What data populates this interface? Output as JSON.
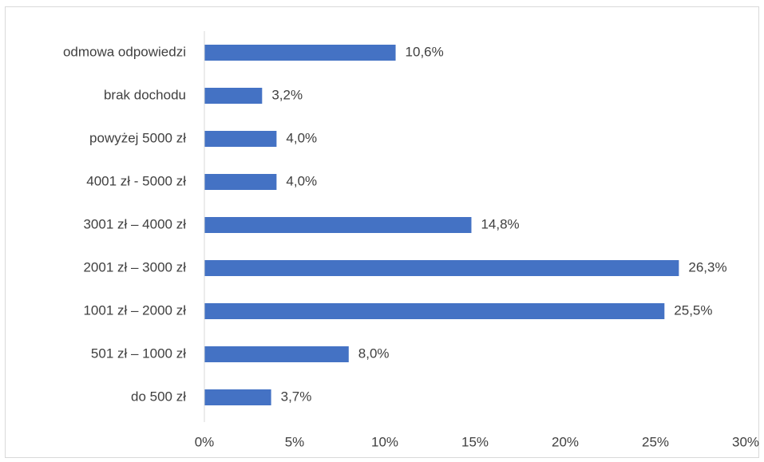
{
  "chart_data": {
    "type": "bar",
    "orientation": "horizontal",
    "categories": [
      "odmowa odpowiedzi",
      "brak dochodu",
      "powyżej 5000 zł",
      "4001 zł - 5000 zł",
      "3001 zł – 4000 zł",
      "2001 zł – 3000 zł",
      "1001 zł – 2000 zł",
      "501 zł – 1000 zł",
      "do 500 zł"
    ],
    "values": [
      10.6,
      3.2,
      4.0,
      4.0,
      14.8,
      26.3,
      25.5,
      8.0,
      3.7
    ],
    "data_labels": [
      "10,6%",
      "3,2%",
      "4,0%",
      "4,0%",
      "14,8%",
      "26,3%",
      "25,5%",
      "8,0%",
      "3,7%"
    ],
    "x_ticks": [
      0,
      5,
      10,
      15,
      20,
      25,
      30
    ],
    "x_tick_labels": [
      "0%",
      "5%",
      "10%",
      "15%",
      "20%",
      "25%",
      "30%"
    ],
    "xlim": [
      0,
      30
    ],
    "unit": "%",
    "grid": false,
    "legend": "none",
    "bar_color": "#4472c4",
    "title": "",
    "xlabel": "",
    "ylabel": ""
  }
}
